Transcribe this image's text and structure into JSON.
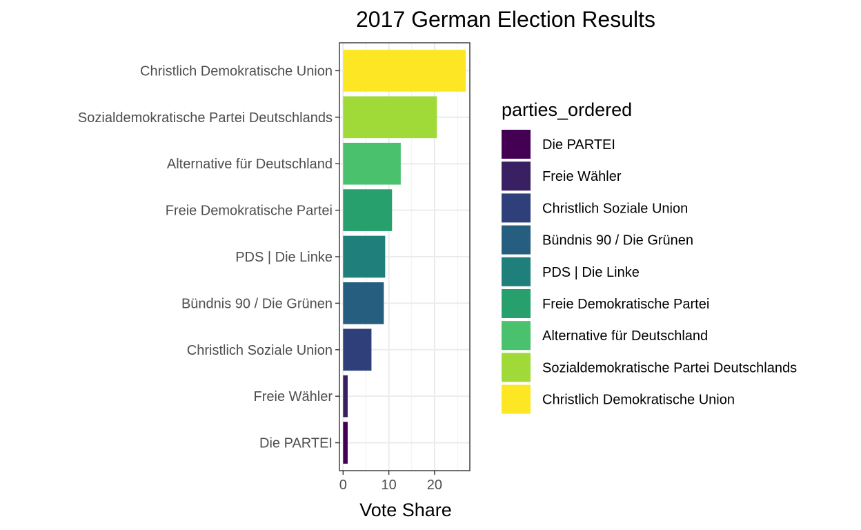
{
  "chart_data": {
    "type": "bar",
    "orientation": "horizontal",
    "title": "2017 German Election Results",
    "xlabel": "Vote Share",
    "ylabel": "",
    "xlim": [
      -0.8,
      27.7
    ],
    "xticks": [
      0,
      10,
      20
    ],
    "grid": true,
    "legend_title": "parties_ordered",
    "legend_position": "right",
    "categories": [
      "Christlich Demokratische Union",
      "Sozialdemokratische Partei Deutschlands",
      "Alternative für Deutschland",
      "Freie Demokratische Partei",
      "PDS | Die Linke",
      "Bündnis 90 / Die Grünen",
      "Christlich Soziale Union",
      "Freie Wähler",
      "Die PARTEI"
    ],
    "values": [
      26.8,
      20.5,
      12.6,
      10.7,
      9.2,
      8.9,
      6.2,
      1.0,
      1.0
    ],
    "colors": [
      "#FDE725",
      "#A0DA39",
      "#4AC16D",
      "#1FA187",
      "#277F8E",
      "#365C8D",
      "#46327E",
      "#440154"
    ],
    "bar_colors": [
      "#FDE725",
      "#A0DA39",
      "#4AC16D",
      "#27A06E",
      "#1F7F7A",
      "#255E7E",
      "#2E3F7A",
      "#382062",
      "#440154"
    ],
    "legend": [
      {
        "label": "Die PARTEI",
        "color": "#440154"
      },
      {
        "label": "Freie Wähler",
        "color": "#382062"
      },
      {
        "label": "Christlich Soziale Union",
        "color": "#2E3F7A"
      },
      {
        "label": "Bündnis 90 / Die Grünen",
        "color": "#255E7E"
      },
      {
        "label": "PDS | Die Linke",
        "color": "#1F7F7A"
      },
      {
        "label": "Freie Demokratische Partei",
        "color": "#27A06E"
      },
      {
        "label": "Alternative für Deutschland",
        "color": "#4AC16D"
      },
      {
        "label": "Sozialdemokratische Partei Deutschlands",
        "color": "#A0DA39"
      },
      {
        "label": "Christlich Demokratische Union",
        "color": "#FDE725"
      }
    ]
  }
}
